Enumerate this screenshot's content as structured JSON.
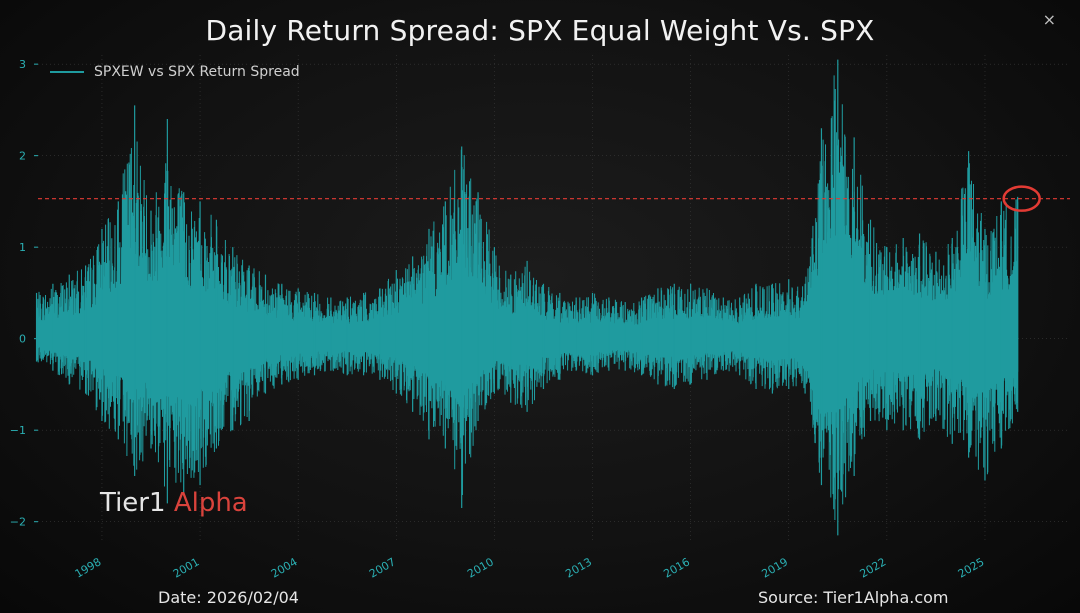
{
  "window": {
    "close_label": "×"
  },
  "chart_data": {
    "type": "line",
    "title": "Daily Return Spread: SPX Equal Weight Vs. SPX",
    "xlabel": "",
    "ylabel": "",
    "ylim": [
      -2.2,
      3.1
    ],
    "xlim": [
      1995.8,
      2027.6
    ],
    "yticks": [
      -2,
      -1,
      0,
      1,
      2,
      3
    ],
    "ytick_labels": [
      "−2",
      "−1",
      "0",
      "1",
      "2",
      "3"
    ],
    "xticks": [
      1998,
      2001,
      2004,
      2007,
      2010,
      2013,
      2016,
      2019,
      2022,
      2025
    ],
    "xtick_labels": [
      "1998",
      "2001",
      "2004",
      "2007",
      "2010",
      "2013",
      "2016",
      "2019",
      "2022",
      "2025"
    ],
    "grid": true,
    "legend": "top-left",
    "series": [
      {
        "name": "SPXEW vs SPX Return Spread",
        "color": "#1f9b9f",
        "x": [
          1996.0,
          1996.5,
          1997.0,
          1997.5,
          1998.0,
          1998.5,
          1999.0,
          1999.5,
          2000.0,
          2000.5,
          2001.0,
          2001.5,
          2002.0,
          2002.5,
          2003.0,
          2003.5,
          2004.0,
          2004.5,
          2005.0,
          2005.5,
          2006.0,
          2006.5,
          2007.0,
          2007.5,
          2008.0,
          2008.5,
          2009.0,
          2009.5,
          2010.0,
          2010.5,
          2011.0,
          2011.5,
          2012.0,
          2012.5,
          2013.0,
          2013.5,
          2014.0,
          2014.5,
          2015.0,
          2015.5,
          2016.0,
          2016.5,
          2017.0,
          2017.5,
          2018.0,
          2018.5,
          2019.0,
          2019.5,
          2020.0,
          2020.5,
          2021.0,
          2021.5,
          2022.0,
          2022.5,
          2023.0,
          2023.5,
          2024.0,
          2024.5,
          2025.0,
          2025.5,
          2026.0
        ],
        "upper": [
          0.5,
          0.6,
          0.7,
          0.8,
          1.2,
          1.5,
          2.55,
          1.4,
          2.4,
          1.6,
          1.5,
          1.3,
          1.0,
          0.8,
          0.7,
          0.6,
          0.55,
          0.5,
          0.45,
          0.45,
          0.5,
          0.55,
          0.75,
          0.9,
          1.2,
          1.5,
          2.1,
          1.6,
          1.0,
          0.7,
          0.85,
          0.6,
          0.5,
          0.45,
          0.5,
          0.45,
          0.4,
          0.45,
          0.55,
          0.6,
          0.6,
          0.55,
          0.45,
          0.45,
          0.6,
          0.6,
          0.65,
          0.6,
          2.3,
          3.05,
          2.2,
          1.3,
          1.0,
          1.1,
          1.15,
          0.95,
          1.1,
          2.05,
          1.2,
          1.5,
          1.55
        ],
        "lower": [
          -0.25,
          -0.35,
          -0.5,
          -0.6,
          -0.9,
          -1.1,
          -1.5,
          -1.2,
          -1.8,
          -1.7,
          -1.6,
          -1.2,
          -1.0,
          -0.9,
          -0.6,
          -0.5,
          -0.45,
          -0.4,
          -0.35,
          -0.4,
          -0.4,
          -0.45,
          -0.6,
          -0.8,
          -1.1,
          -1.2,
          -1.85,
          -0.9,
          -0.6,
          -0.7,
          -0.8,
          -0.55,
          -0.45,
          -0.35,
          -0.4,
          -0.35,
          -0.35,
          -0.4,
          -0.5,
          -0.55,
          -0.5,
          -0.45,
          -0.35,
          -0.4,
          -0.55,
          -0.6,
          -0.55,
          -0.6,
          -1.6,
          -2.15,
          -1.5,
          -0.9,
          -1.0,
          -1.0,
          -1.1,
          -0.9,
          -1.15,
          -1.3,
          -1.55,
          -1.2,
          -0.8
        ]
      }
    ],
    "annotations": {
      "threshold_value": 1.53,
      "threshold_color": "#e23b34",
      "circle_x": 2026.0,
      "circle_y": 1.53,
      "circle_color": "#e23b34"
    },
    "brand": {
      "part1": "Tier1",
      "part2": "Alpha",
      "color1": "#e6e6e6",
      "color2": "#d9433c"
    },
    "footer": {
      "date": "Date: 2026/02/04",
      "source": "Source: Tier1Alpha.com"
    }
  }
}
